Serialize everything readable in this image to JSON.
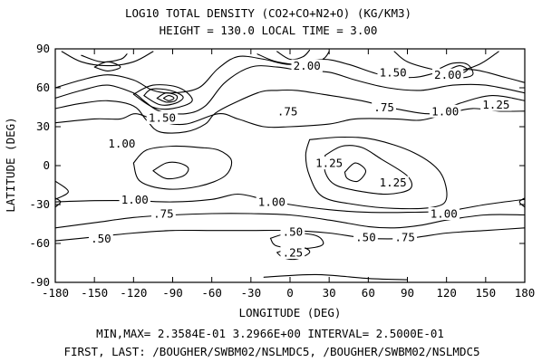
{
  "chart_data": {
    "type": "contour",
    "title": "LOG10 TOTAL DENSITY (CO2+CO+N2+O) (KG/KM3)",
    "subtitle": "HEIGHT =  130.0 LOCAL TIME =  3.00",
    "xlabel": "LONGITUDE (DEG)",
    "ylabel": "LATITUDE (DEG)",
    "xlim": [
      -180,
      180
    ],
    "ylim": [
      -90,
      90
    ],
    "xticks": [
      -180,
      -150,
      -120,
      -90,
      -60,
      -30,
      0,
      30,
      60,
      90,
      120,
      150,
      180
    ],
    "yticks": [
      -90,
      -60,
      -30,
      0,
      30,
      60,
      90
    ],
    "xtick_labels": [
      "-180",
      "-150",
      "-120",
      "-90",
      "-60",
      "-30",
      "0",
      "30",
      "60",
      "90",
      "120",
      "150",
      "180"
    ],
    "ytick_labels": [
      "-90",
      "-60",
      "-30",
      "0",
      "30",
      "60",
      "90"
    ],
    "minmax_text": "MIN,MAX=  2.3584E-01  3.2966E+00 INTERVAL=  2.5000E-01",
    "first_last_text": "FIRST, LAST: /BOUGHER/SWBM02/NSLMDC5, /BOUGHER/SWBM02/NSLMDC5",
    "contours": [
      {
        "label": ".50",
        "points": [
          [
            -180,
            -58
          ],
          [
            -150,
            -55
          ],
          [
            -120,
            -52
          ],
          [
            -90,
            -50
          ],
          [
            -60,
            -50
          ],
          [
            -30,
            -50
          ],
          [
            0,
            -50
          ],
          [
            30,
            -52
          ],
          [
            60,
            -56
          ],
          [
            90,
            -56
          ],
          [
            120,
            -52
          ],
          [
            150,
            -50
          ],
          [
            180,
            -48
          ]
        ]
      },
      {
        "label": ".75",
        "points": [
          [
            -180,
            -48
          ],
          [
            -150,
            -44
          ],
          [
            -120,
            -40
          ],
          [
            -90,
            -38
          ],
          [
            -60,
            -37
          ],
          [
            -30,
            -37
          ],
          [
            0,
            -38
          ],
          [
            30,
            -42
          ],
          [
            60,
            -47
          ],
          [
            80,
            -48
          ],
          [
            100,
            -46
          ],
          [
            120,
            -42
          ],
          [
            150,
            -38
          ],
          [
            180,
            -38
          ]
        ]
      },
      {
        "label": "1.00",
        "points": [
          [
            -180,
            -28
          ],
          [
            -150,
            -27
          ],
          [
            -120,
            -27
          ],
          [
            -90,
            -28
          ],
          [
            -60,
            -26
          ],
          [
            -40,
            -22
          ],
          [
            -20,
            -26
          ],
          [
            0,
            -30
          ],
          [
            30,
            -34
          ],
          [
            60,
            -36
          ],
          [
            90,
            -36
          ],
          [
            120,
            -35
          ],
          [
            150,
            -30
          ],
          [
            180,
            -26
          ]
        ]
      },
      {
        "label": ".25",
        "points": [
          [
            -10,
            -67
          ],
          [
            0,
            -64
          ],
          [
            10,
            -63
          ],
          [
            15,
            -67
          ],
          [
            5,
            -72
          ],
          [
            -5,
            -71
          ],
          [
            -10,
            -67
          ]
        ]
      },
      {
        "label": ".50",
        "points": [
          [
            -15,
            -56
          ],
          [
            0,
            -52
          ],
          [
            20,
            -54
          ],
          [
            25,
            -61
          ],
          [
            10,
            -64
          ],
          [
            -10,
            -62
          ],
          [
            -15,
            -56
          ]
        ]
      },
      {
        "label": "1.00",
        "points": [
          [
            -120,
            2
          ],
          [
            -110,
            12
          ],
          [
            -90,
            15
          ],
          [
            -70,
            14
          ],
          [
            -55,
            12
          ],
          [
            -45,
            4
          ],
          [
            -50,
            -8
          ],
          [
            -70,
            -16
          ],
          [
            -95,
            -18
          ],
          [
            -115,
            -12
          ],
          [
            -120,
            2
          ]
        ]
      },
      {
        "label": "",
        "points": [
          [
            -105,
            -4
          ],
          [
            -95,
            2
          ],
          [
            -85,
            2
          ],
          [
            -78,
            -2
          ],
          [
            -82,
            -8
          ],
          [
            -95,
            -10
          ],
          [
            -105,
            -4
          ]
        ]
      },
      {
        "label": "1.00",
        "points": [
          [
            15,
            20
          ],
          [
            40,
            22
          ],
          [
            65,
            20
          ],
          [
            95,
            10
          ],
          [
            115,
            -5
          ],
          [
            120,
            -25
          ],
          [
            110,
            -32
          ],
          [
            80,
            -33
          ],
          [
            50,
            -30
          ],
          [
            25,
            -24
          ],
          [
            15,
            -8
          ],
          [
            12,
            8
          ],
          [
            15,
            20
          ]
        ]
      },
      {
        "label": "1.25",
        "points": [
          [
            27,
            8
          ],
          [
            40,
            15
          ],
          [
            55,
            14
          ],
          [
            70,
            5
          ],
          [
            90,
            -8
          ],
          [
            92,
            -18
          ],
          [
            75,
            -22
          ],
          [
            55,
            -20
          ],
          [
            35,
            -15
          ],
          [
            27,
            -5
          ],
          [
            27,
            8
          ]
        ]
      },
      {
        "label": "",
        "points": [
          [
            42,
            -5
          ],
          [
            50,
            2
          ],
          [
            58,
            -4
          ],
          [
            52,
            -12
          ],
          [
            44,
            -10
          ],
          [
            42,
            -5
          ]
        ]
      },
      {
        "label": ".75",
        "points": [
          [
            -180,
            33
          ],
          [
            -150,
            36
          ],
          [
            -130,
            36
          ],
          [
            -118,
            40
          ],
          [
            -100,
            34
          ],
          [
            -80,
            32
          ],
          [
            -55,
            40
          ],
          [
            -40,
            36
          ],
          [
            -20,
            30
          ],
          [
            0,
            30
          ],
          [
            30,
            32
          ],
          [
            50,
            36
          ],
          [
            80,
            36
          ],
          [
            100,
            35
          ],
          [
            120,
            40
          ],
          [
            140,
            44
          ],
          [
            160,
            42
          ],
          [
            180,
            42
          ]
        ]
      },
      {
        "label": "1.00",
        "points": [
          [
            -180,
            44
          ],
          [
            -160,
            48
          ],
          [
            -140,
            50
          ],
          [
            -120,
            46
          ],
          [
            -110,
            35
          ],
          [
            -100,
            26
          ],
          [
            -80,
            26
          ],
          [
            -65,
            32
          ],
          [
            -55,
            42
          ],
          [
            -25,
            56
          ],
          [
            -10,
            58
          ],
          [
            5,
            58
          ],
          [
            25,
            55
          ],
          [
            55,
            50
          ],
          [
            80,
            44
          ],
          [
            110,
            40
          ],
          [
            130,
            48
          ],
          [
            155,
            54
          ],
          [
            180,
            50
          ]
        ]
      },
      {
        "label": "1.25",
        "points": [
          [
            -180,
            52
          ],
          [
            -160,
            58
          ],
          [
            -140,
            62
          ],
          [
            -120,
            56
          ],
          [
            -112,
            50
          ],
          [
            -100,
            42
          ],
          [
            -80,
            40
          ],
          [
            -65,
            46
          ],
          [
            -50,
            64
          ],
          [
            -30,
            76
          ],
          [
            -10,
            76
          ],
          [
            10,
            73
          ],
          [
            30,
            72
          ],
          [
            50,
            66
          ],
          [
            75,
            60
          ],
          [
            100,
            58
          ],
          [
            125,
            62
          ],
          [
            150,
            62
          ],
          [
            180,
            56
          ]
        ]
      },
      {
        "label": "1.50",
        "points": [
          [
            -180,
            60
          ],
          [
            -160,
            66
          ],
          [
            -140,
            70
          ],
          [
            -120,
            66
          ],
          [
            -105,
            58
          ],
          [
            -90,
            56
          ],
          [
            -70,
            60
          ],
          [
            -55,
            75
          ],
          [
            -40,
            84
          ],
          [
            -20,
            82
          ],
          [
            0,
            78
          ],
          [
            25,
            82
          ],
          [
            45,
            78
          ],
          [
            70,
            70
          ],
          [
            95,
            68
          ],
          [
            115,
            72
          ],
          [
            140,
            74
          ],
          [
            165,
            68
          ],
          [
            180,
            64
          ]
        ]
      },
      {
        "label": "2.00",
        "points": [
          [
            -25,
            86
          ],
          [
            -10,
            80
          ],
          [
            10,
            78
          ],
          [
            25,
            82
          ],
          [
            30,
            88
          ]
        ]
      },
      {
        "label": "",
        "points": [
          [
            -10,
            88
          ],
          [
            0,
            82
          ],
          [
            10,
            84
          ],
          [
            15,
            89
          ]
        ]
      },
      {
        "label": "2.00",
        "points": [
          [
            80,
            88
          ],
          [
            90,
            80
          ],
          [
            110,
            74
          ],
          [
            125,
            72
          ],
          [
            145,
            78
          ],
          [
            160,
            88
          ]
        ]
      },
      {
        "label": "",
        "points": [
          [
            115,
            75
          ],
          [
            128,
            68
          ],
          [
            140,
            70
          ],
          [
            136,
            78
          ],
          [
            125,
            79
          ],
          [
            115,
            75
          ]
        ]
      },
      {
        "label": "",
        "points": [
          [
            122,
            74
          ],
          [
            130,
            71
          ],
          [
            136,
            74
          ],
          [
            130,
            77
          ],
          [
            122,
            74
          ]
        ]
      },
      {
        "label": "",
        "points": [
          [
            -175,
            88
          ],
          [
            -160,
            80
          ],
          [
            -140,
            77
          ],
          [
            -120,
            80
          ],
          [
            -105,
            88
          ]
        ]
      },
      {
        "label": "",
        "points": [
          [
            -160,
            85
          ],
          [
            -145,
            80
          ],
          [
            -130,
            82
          ],
          [
            -125,
            86
          ]
        ]
      },
      {
        "label": "",
        "points": [
          [
            -150,
            76
          ],
          [
            -140,
            73
          ],
          [
            -130,
            76
          ],
          [
            -140,
            80
          ],
          [
            -150,
            76
          ]
        ]
      },
      {
        "label": "",
        "points": [
          [
            -120,
            55
          ],
          [
            -105,
            45
          ],
          [
            -90,
            44
          ],
          [
            -75,
            50
          ],
          [
            -85,
            60
          ],
          [
            -105,
            62
          ],
          [
            -120,
            55
          ]
        ]
      },
      {
        "label": "",
        "points": [
          [
            -112,
            54
          ],
          [
            -100,
            47
          ],
          [
            -88,
            48
          ],
          [
            -82,
            53
          ],
          [
            -92,
            58
          ],
          [
            -106,
            59
          ],
          [
            -112,
            54
          ]
        ]
      },
      {
        "label": "",
        "points": [
          [
            -102,
            52
          ],
          [
            -95,
            49
          ],
          [
            -88,
            50
          ],
          [
            -87,
            54
          ],
          [
            -95,
            56
          ],
          [
            -102,
            52
          ]
        ]
      },
      {
        "label": "",
        "points": [
          [
            -97,
            52
          ],
          [
            -93,
            50
          ],
          [
            -89,
            52
          ],
          [
            -93,
            54
          ],
          [
            -97,
            52
          ]
        ]
      },
      {
        "label": "",
        "points": [
          [
            -180,
            -25
          ],
          [
            -176,
            -28
          ],
          [
            -180,
            -32
          ]
        ]
      },
      {
        "label": "",
        "points": [
          [
            180,
            -25
          ],
          [
            176,
            -28
          ],
          [
            180,
            -32
          ]
        ]
      },
      {
        "label": "",
        "points": [
          [
            -180,
            -12
          ],
          [
            -170,
            -20
          ],
          [
            -180,
            -26
          ]
        ]
      },
      {
        "label": "",
        "points": [
          [
            -20,
            -86
          ],
          [
            20,
            -84
          ],
          [
            60,
            -87
          ],
          [
            90,
            -88
          ]
        ]
      }
    ],
    "contour_labels": [
      {
        "text": ".50",
        "x": -145,
        "y": -56
      },
      {
        "text": ".75",
        "x": -97,
        "y": -37
      },
      {
        "text": "1.00",
        "x": -119,
        "y": -26
      },
      {
        "text": ".25",
        "x": 2,
        "y": -67
      },
      {
        "text": ".50",
        "x": 2,
        "y": -51
      },
      {
        "text": ".50",
        "x": 58,
        "y": -55
      },
      {
        "text": ".75",
        "x": 88,
        "y": -55
      },
      {
        "text": "1.00",
        "x": -14,
        "y": -28
      },
      {
        "text": "1.00",
        "x": 118,
        "y": -37
      },
      {
        "text": "1.25",
        "x": 30,
        "y": 2
      },
      {
        "text": "1.25",
        "x": 79,
        "y": -13
      },
      {
        "text": "1.00",
        "x": -129,
        "y": 17
      },
      {
        "text": ".75",
        "x": -2,
        "y": 42
      },
      {
        "text": ".75",
        "x": 72,
        "y": 45
      },
      {
        "text": "1.00",
        "x": 119,
        "y": 42
      },
      {
        "text": "1.25",
        "x": 158,
        "y": 47
      },
      {
        "text": "1.50",
        "x": -98,
        "y": 37
      },
      {
        "text": "1.50",
        "x": 79,
        "y": 72
      },
      {
        "text": "2.00",
        "x": 13,
        "y": 77
      },
      {
        "text": "2.00",
        "x": 121,
        "y": 70
      }
    ]
  }
}
